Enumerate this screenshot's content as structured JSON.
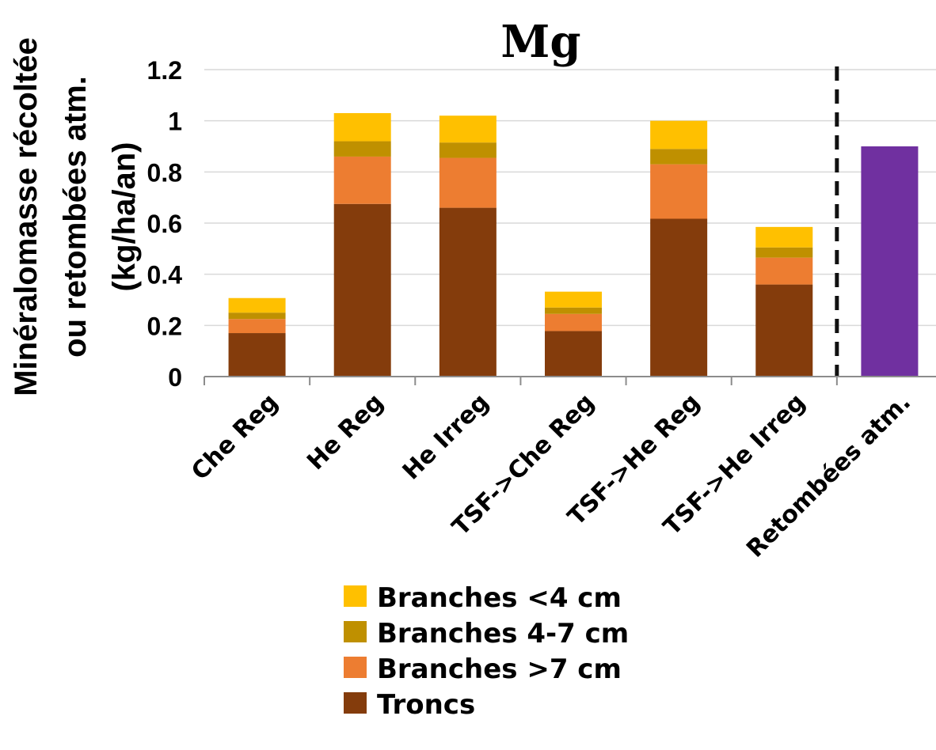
{
  "chart_data": {
    "type": "bar",
    "title": "Mg",
    "ylabel_lines": [
      "Minéralomasse récoltée",
      "ou retombées atm.",
      "(kg/ha/an)"
    ],
    "xlabel": "",
    "ylim": [
      0,
      1.2
    ],
    "yticks": [
      "0",
      "0.2",
      "0.4",
      "0.6",
      "0.8",
      "1",
      "1.2"
    ],
    "categories": [
      "Che Reg",
      "He Reg",
      "He Irreg",
      "TSF->Che Reg",
      "TSF->He Reg",
      "TSF->He Irreg",
      "Retombées atm."
    ],
    "stacked": true,
    "separator": "dashed vertical line between TSF->He Irreg and Retombées atm.",
    "grid": "horizontal",
    "legend_position": "bottom-center",
    "series": [
      {
        "name": "Troncs",
        "color": "#843C0C",
        "values": [
          0.17,
          0.675,
          0.66,
          0.178,
          0.617,
          0.36,
          null
        ]
      },
      {
        "name": "Branches >7 cm",
        "color": "#ED7D31",
        "values": [
          0.055,
          0.185,
          0.195,
          0.067,
          0.213,
          0.105,
          null
        ]
      },
      {
        "name": "Branches 4-7 cm",
        "color": "#BF9000",
        "values": [
          0.025,
          0.06,
          0.06,
          0.025,
          0.06,
          0.04,
          null
        ]
      },
      {
        "name": "Branches <4 cm",
        "color": "#FFC000",
        "values": [
          0.057,
          0.11,
          0.105,
          0.062,
          0.11,
          0.08,
          null
        ]
      },
      {
        "name": "",
        "color": "#7030A0",
        "values": [
          null,
          null,
          null,
          null,
          null,
          null,
          0.9
        ]
      }
    ],
    "legend": [
      {
        "label": "Branches <4 cm",
        "color": "#FFC000"
      },
      {
        "label": "Branches 4-7 cm",
        "color": "#BF9000"
      },
      {
        "label": "Branches >7 cm",
        "color": "#ED7D31"
      },
      {
        "label": "Troncs",
        "color": "#843C0C"
      }
    ]
  }
}
